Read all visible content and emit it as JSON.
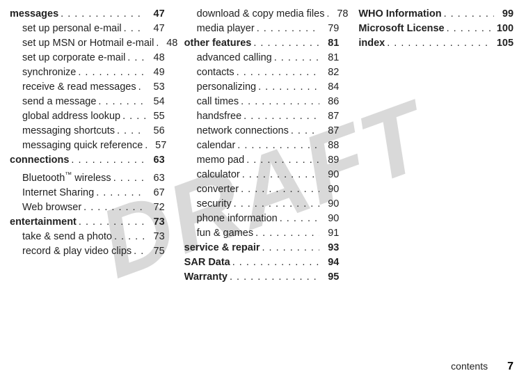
{
  "watermark": "DRAFT",
  "footer": {
    "label": "contents",
    "page": "7"
  },
  "columns": [
    [
      {
        "type": "heading",
        "label": "messages",
        "page": "47"
      },
      {
        "type": "sub",
        "label": "set up personal e-mail",
        "page": "47"
      },
      {
        "type": "sub",
        "label": "set up MSN or Hotmail e-mail",
        "page": "48"
      },
      {
        "type": "sub",
        "label": "set up corporate e-mail",
        "page": "48"
      },
      {
        "type": "sub",
        "label": "synchronize",
        "page": "49"
      },
      {
        "type": "sub",
        "label": "receive & read messages",
        "page": "53"
      },
      {
        "type": "sub",
        "label": "send a message",
        "page": "54"
      },
      {
        "type": "sub",
        "label": "global address lookup",
        "page": "55"
      },
      {
        "type": "sub",
        "label": "messaging shortcuts",
        "page": "56"
      },
      {
        "type": "sub",
        "label": "messaging quick reference",
        "page": "57"
      },
      {
        "type": "heading",
        "label": "connections",
        "page": "63"
      },
      {
        "type": "sub",
        "label": "Bluetooth™ wireless",
        "page": "63"
      },
      {
        "type": "sub",
        "label": "Internet Sharing",
        "page": "67"
      },
      {
        "type": "sub",
        "label": "Web browser",
        "page": "72"
      },
      {
        "type": "heading",
        "label": "entertainment",
        "page": "73"
      },
      {
        "type": "sub",
        "label": "take & send a photo",
        "page": "73"
      },
      {
        "type": "sub",
        "label": "record & play video clips",
        "page": "75"
      }
    ],
    [
      {
        "type": "sub",
        "label": "download & copy media files",
        "page": "78"
      },
      {
        "type": "sub",
        "label": "media player",
        "page": "79"
      },
      {
        "type": "heading",
        "label": "other features",
        "page": "81"
      },
      {
        "type": "sub",
        "label": "advanced calling",
        "page": "81"
      },
      {
        "type": "sub",
        "label": "contacts",
        "page": "82"
      },
      {
        "type": "sub",
        "label": "personalizing",
        "page": "84"
      },
      {
        "type": "sub",
        "label": "call times",
        "page": "86"
      },
      {
        "type": "sub",
        "label": "handsfree",
        "page": "87"
      },
      {
        "type": "sub",
        "label": "network connections",
        "page": "87"
      },
      {
        "type": "sub",
        "label": "calendar",
        "page": "88"
      },
      {
        "type": "sub",
        "label": "memo pad",
        "page": "89"
      },
      {
        "type": "sub",
        "label": "calculator",
        "page": "90"
      },
      {
        "type": "sub",
        "label": "converter",
        "page": "90"
      },
      {
        "type": "sub",
        "label": "security",
        "page": "90"
      },
      {
        "type": "sub",
        "label": "phone information",
        "page": "90"
      },
      {
        "type": "sub",
        "label": "fun & games",
        "page": "91"
      },
      {
        "type": "heading",
        "label": "service & repair",
        "page": "93"
      },
      {
        "type": "heading",
        "label": "SAR Data",
        "page": "94"
      },
      {
        "type": "heading",
        "label": "Warranty",
        "page": "95"
      }
    ],
    [
      {
        "type": "heading",
        "label": "WHO Information",
        "page": "99"
      },
      {
        "type": "heading",
        "label": "Microsoft License",
        "page": "100"
      },
      {
        "type": "heading",
        "label": "index",
        "page": "105"
      }
    ]
  ]
}
